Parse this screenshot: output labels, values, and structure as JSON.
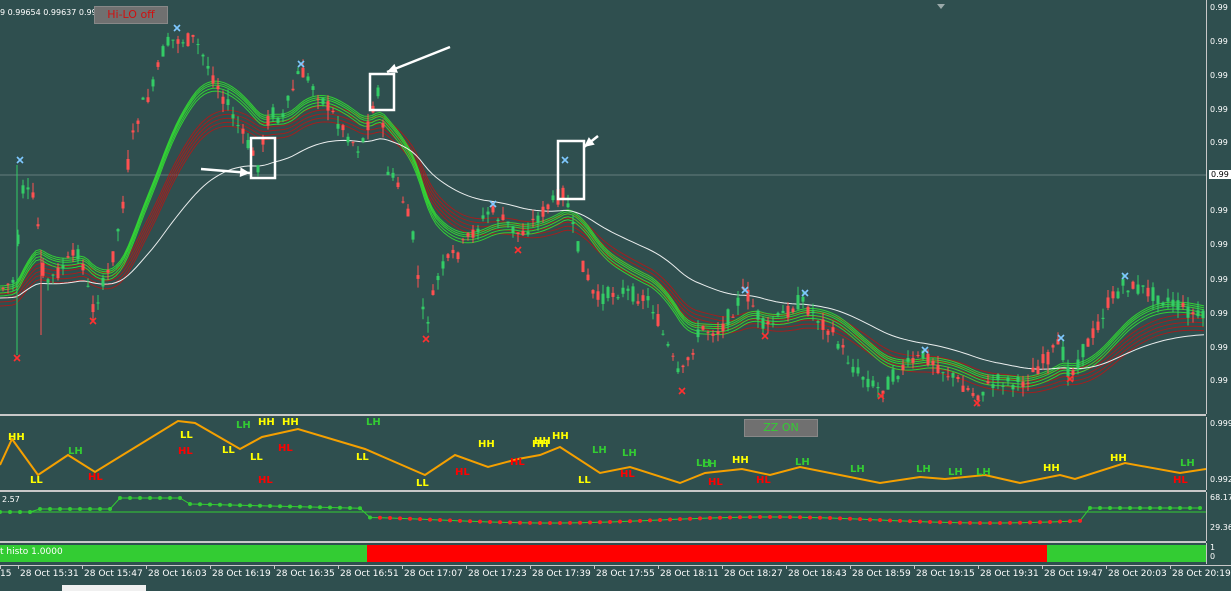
{
  "header": {
    "ohlc_text": "9 0.99654 0.99637 0.99",
    "hilo_button": "Hi-LO off",
    "zz_button": "ZZ ON"
  },
  "price_axis": {
    "labels": [
      "0.99",
      "0.99",
      "0.99",
      "0.99",
      "0.99",
      "0.99",
      "0.99",
      "0.99",
      "0.99",
      "0.99",
      "0.99",
      "0.99"
    ],
    "current_price_label": "0.99"
  },
  "zz_axis": {
    "labels": [
      "0.999",
      "0.992"
    ]
  },
  "osc_axis": {
    "labels": [
      "68.17",
      "29.36"
    ]
  },
  "osc_left_label": "2.57",
  "histo": {
    "label": "t histo 1.0000",
    "axis_labels": [
      "1",
      "0"
    ],
    "segments": [
      {
        "color": "#33cc33",
        "from": 0,
        "to": 0.304
      },
      {
        "color": "#ff0000",
        "from": 0.304,
        "to": 0.868
      },
      {
        "color": "#33cc33",
        "from": 0.868,
        "to": 1
      }
    ]
  },
  "time_axis": {
    "labels": [
      "15",
      "28 Oct 15:31",
      "28 Oct 15:47",
      "28 Oct 16:03",
      "28 Oct 16:19",
      "28 Oct 16:35",
      "28 Oct 16:51",
      "28 Oct 17:07",
      "28 Oct 17:23",
      "28 Oct 17:39",
      "28 Oct 17:55",
      "28 Oct 18:11",
      "28 Oct 18:27",
      "28 Oct 18:43",
      "28 Oct 18:59",
      "28 Oct 19:15",
      "28 Oct 19:31",
      "28 Oct 19:47",
      "28 Oct 20:03",
      "28 Oct 20:19"
    ]
  },
  "zigzag_labels": [
    {
      "t": "HH",
      "c": "#ffff00"
    },
    {
      "t": "LL",
      "c": "#ffff00"
    },
    {
      "t": "LH",
      "c": "#33cc33"
    },
    {
      "t": "HL",
      "c": "#ff0000"
    },
    {
      "t": "LL",
      "c": "#ffff00"
    },
    {
      "t": "HL",
      "c": "#ff0000"
    },
    {
      "t": "LH",
      "c": "#33cc33"
    },
    {
      "t": "LL",
      "c": "#ffff00"
    },
    {
      "t": "HH",
      "c": "#ffff00"
    },
    {
      "t": "HL",
      "c": "#ff0000"
    },
    {
      "t": "LL",
      "c": "#ffff00"
    },
    {
      "t": "HH",
      "c": "#ffff00"
    },
    {
      "t": "LH",
      "c": "#33cc33"
    },
    {
      "t": "LL",
      "c": "#ffff00"
    },
    {
      "t": "LL",
      "c": "#ffff00"
    },
    {
      "t": "HL",
      "c": "#ff0000"
    },
    {
      "t": "LH",
      "c": "#33cc33"
    },
    {
      "t": "HH",
      "c": "#ffff00"
    },
    {
      "t": "HL",
      "c": "#ff0000"
    },
    {
      "t": "HH",
      "c": "#ffff00"
    },
    {
      "t": "HL",
      "c": "#ff0000"
    },
    {
      "t": "HH",
      "c": "#ffff00"
    },
    {
      "t": "HH",
      "c": "#ffff00"
    },
    {
      "t": "LH",
      "c": "#33cc33"
    },
    {
      "t": "LL",
      "c": "#ffff00"
    },
    {
      "t": "LH",
      "c": "#33cc33"
    },
    {
      "t": "HL",
      "c": "#ff0000"
    },
    {
      "t": "LH",
      "c": "#33cc33"
    },
    {
      "t": "HL",
      "c": "#ff0000"
    },
    {
      "t": "HH",
      "c": "#ffff00"
    },
    {
      "t": "HL",
      "c": "#ff0000"
    },
    {
      "t": "LH",
      "c": "#33cc33"
    },
    {
      "t": "LH",
      "c": "#33cc33"
    },
    {
      "t": "LH",
      "c": "#33cc33"
    },
    {
      "t": "LH",
      "c": "#33cc33"
    },
    {
      "t": "LH",
      "c": "#33cc33"
    },
    {
      "t": "HH",
      "c": "#ffff00"
    },
    {
      "t": "HH",
      "c": "#ffff00"
    },
    {
      "t": "LH",
      "c": "#33cc33"
    },
    {
      "t": "HL",
      "c": "#ff0000"
    }
  ],
  "colors": {
    "background": "#2f4f4f",
    "bull": "#33cc66",
    "bear": "#ff5050",
    "ema_red": "#b01818",
    "ema_green": "#33dd33",
    "ema_white": "#ffffff",
    "zigzag": "#f5a000",
    "arrow": "#ffffff"
  },
  "icons": {
    "swing_high": "x-mark-icon",
    "swing_low": "x-mark-icon",
    "arrow": "arrow-icon",
    "box": "highlight-box"
  }
}
